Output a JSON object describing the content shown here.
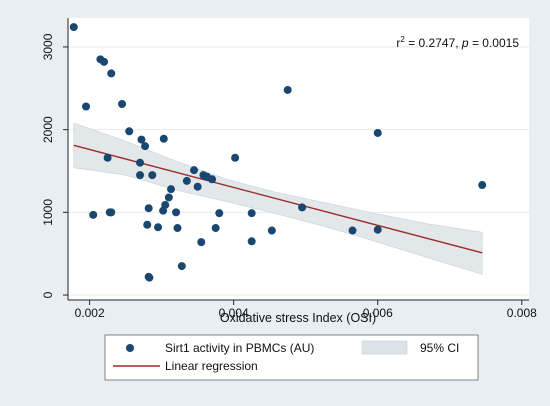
{
  "chart_data": {
    "type": "scatter",
    "xlabel": "Oxidative stress Index (OSI)",
    "ylabel": "",
    "xlim": [
      0.0017,
      0.0081
    ],
    "ylim": [
      -60,
      3350
    ],
    "x_ticks": [
      {
        "value": 0.002,
        "label": "0.002"
      },
      {
        "value": 0.004,
        "label": "0.004"
      },
      {
        "value": 0.006,
        "label": "0.006"
      },
      {
        "value": 0.008,
        "label": "0.008"
      }
    ],
    "y_ticks": [
      {
        "value": 0,
        "label": "0"
      },
      {
        "value": 1000,
        "label": "1000"
      },
      {
        "value": 2000,
        "label": "2000"
      },
      {
        "value": 3000,
        "label": "3000"
      }
    ],
    "grid": true,
    "annotation": {
      "r2_prefix": "r",
      "r2_exp": "2",
      "r2_value": " = 0.2747, ",
      "p_label": "p",
      "p_value": " = 0.0015"
    },
    "series": [
      {
        "name": "Sirt1 activity in PBMCs (AU)",
        "kind": "scatter",
        "color": "#1a476f",
        "x": [
          0.00178,
          0.00195,
          0.00205,
          0.00215,
          0.0022,
          0.00225,
          0.00228,
          0.0023,
          0.0023,
          0.00245,
          0.00255,
          0.0027,
          0.0027,
          0.00272,
          0.00277,
          0.0028,
          0.00282,
          0.00282,
          0.00283,
          0.00287,
          0.00295,
          0.00302,
          0.00303,
          0.00305,
          0.0031,
          0.00313,
          0.0032,
          0.00322,
          0.00328,
          0.00335,
          0.00345,
          0.0035,
          0.00355,
          0.00358,
          0.00363,
          0.0037,
          0.00375,
          0.0038,
          0.00402,
          0.00425,
          0.00425,
          0.00453,
          0.00475,
          0.00495,
          0.00565,
          0.006,
          0.006,
          0.00745
        ],
        "y": [
          3240,
          2280,
          970,
          2850,
          2820,
          1660,
          1000,
          2680,
          1000,
          2310,
          1980,
          1600,
          1450,
          1880,
          1800,
          850,
          220,
          1050,
          210,
          1450,
          820,
          1020,
          1890,
          1090,
          1180,
          1280,
          1000,
          810,
          350,
          1380,
          1510,
          1310,
          640,
          1450,
          1430,
          1400,
          810,
          990,
          1660,
          650,
          990,
          780,
          2480,
          1060,
          780,
          1960,
          790,
          1330
        ]
      },
      {
        "name": "Linear regression",
        "kind": "line",
        "color": "#9b2d2d",
        "x": [
          0.00178,
          0.00745
        ],
        "y": [
          1810,
          510
        ]
      },
      {
        "name": "95% CI",
        "kind": "band",
        "color": "#c9d0d6",
        "x": [
          0.00178,
          0.0025,
          0.0032,
          0.0039,
          0.0046,
          0.0053,
          0.006,
          0.0067,
          0.00745
        ],
        "lower": [
          1540,
          1450,
          1270,
          1130,
          980,
          820,
          640,
          450,
          250
        ],
        "upper": [
          2080,
          1860,
          1620,
          1400,
          1240,
          1110,
          980,
          860,
          760
        ]
      }
    ],
    "legend": {
      "position": "bottom",
      "items": [
        {
          "label": "Sirt1 activity in PBMCs (AU)",
          "symbol": "marker"
        },
        {
          "label": "95% CI",
          "symbol": "band"
        },
        {
          "label": "Linear regression",
          "symbol": "line"
        }
      ]
    }
  }
}
